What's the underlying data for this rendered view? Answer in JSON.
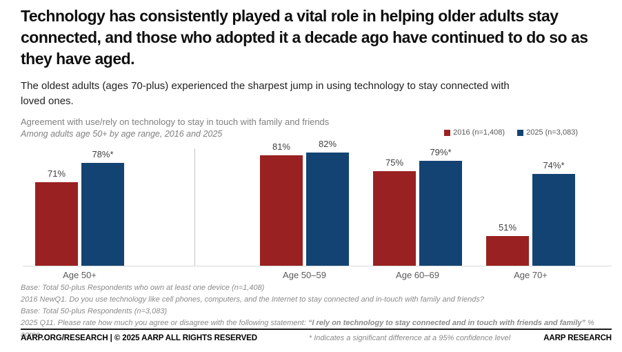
{
  "slide": {
    "headline": "Technology has consistently played a vital role in helping older adults stay connected, and those who adopted it a decade ago have continued to do so as they have aged.",
    "subtitle": "The oldest adults (ages 70-plus) experienced the sharpest jump in using technology to stay connected with loved ones."
  },
  "chart": {
    "title": "Agreement with use/rely on technology to stay in touch with family and friends",
    "subtitle": "Among adults age 50+ by age range, 2016 and 2025",
    "legend": [
      {
        "label": "2016 (n=1,408)",
        "color": "#9a2122"
      },
      {
        "label": "2025 (n=3,083)",
        "color": "#134372"
      }
    ]
  },
  "chart_data": {
    "type": "bar",
    "title": "Agreement with use/rely on technology to stay in touch with family and friends",
    "subtitle": "Among adults age 50+ by age range, 2016 and 2025",
    "categories": [
      "Age 50+",
      "Age 50–59",
      "Age 60–69",
      "Age 70+"
    ],
    "series": [
      {
        "name": "2016 (n=1,408)",
        "color": "#9a2122",
        "values": [
          71,
          81,
          75,
          51
        ],
        "value_labels": [
          "71%",
          "81%",
          "75%",
          "51%"
        ]
      },
      {
        "name": "2025 (n=3,083)",
        "color": "#134372",
        "values": [
          78,
          82,
          79,
          74
        ],
        "value_labels": [
          "78%*",
          "82%",
          "79%*",
          "74%*"
        ]
      }
    ],
    "value_suffix": "%",
    "significance_marker": "*",
    "axis_baseline_value": 40,
    "ylim": [
      40,
      90
    ],
    "grid": false,
    "legend_position": "top-right",
    "divider_after_category_index": 0
  },
  "footnotes": [
    {
      "text": "Base: Total 50-plus Respondents who own at least one device (n=1,408)"
    },
    {
      "text": "2016 NewQ1. Do you use technology like cell phones, computers, and the Internet to stay connected and in-touch with family and friends?"
    },
    {
      "text": "Base: Total 50-plus Respondents (n=3,083)"
    },
    {
      "prefix": "2025 Q11. Please rate how much you agree or disagree with the following statement: ",
      "emphasis": "“I rely on technology to stay connected and in touch with friends and family”",
      "suffix": " % agree"
    }
  ],
  "footer": {
    "left": "AARP.ORG/RESEARCH | © 2025 AARP ALL RIGHTS RESERVED",
    "note": "* Indicates a significant difference at a 95% confidence level",
    "right": "AARP RESEARCH"
  }
}
